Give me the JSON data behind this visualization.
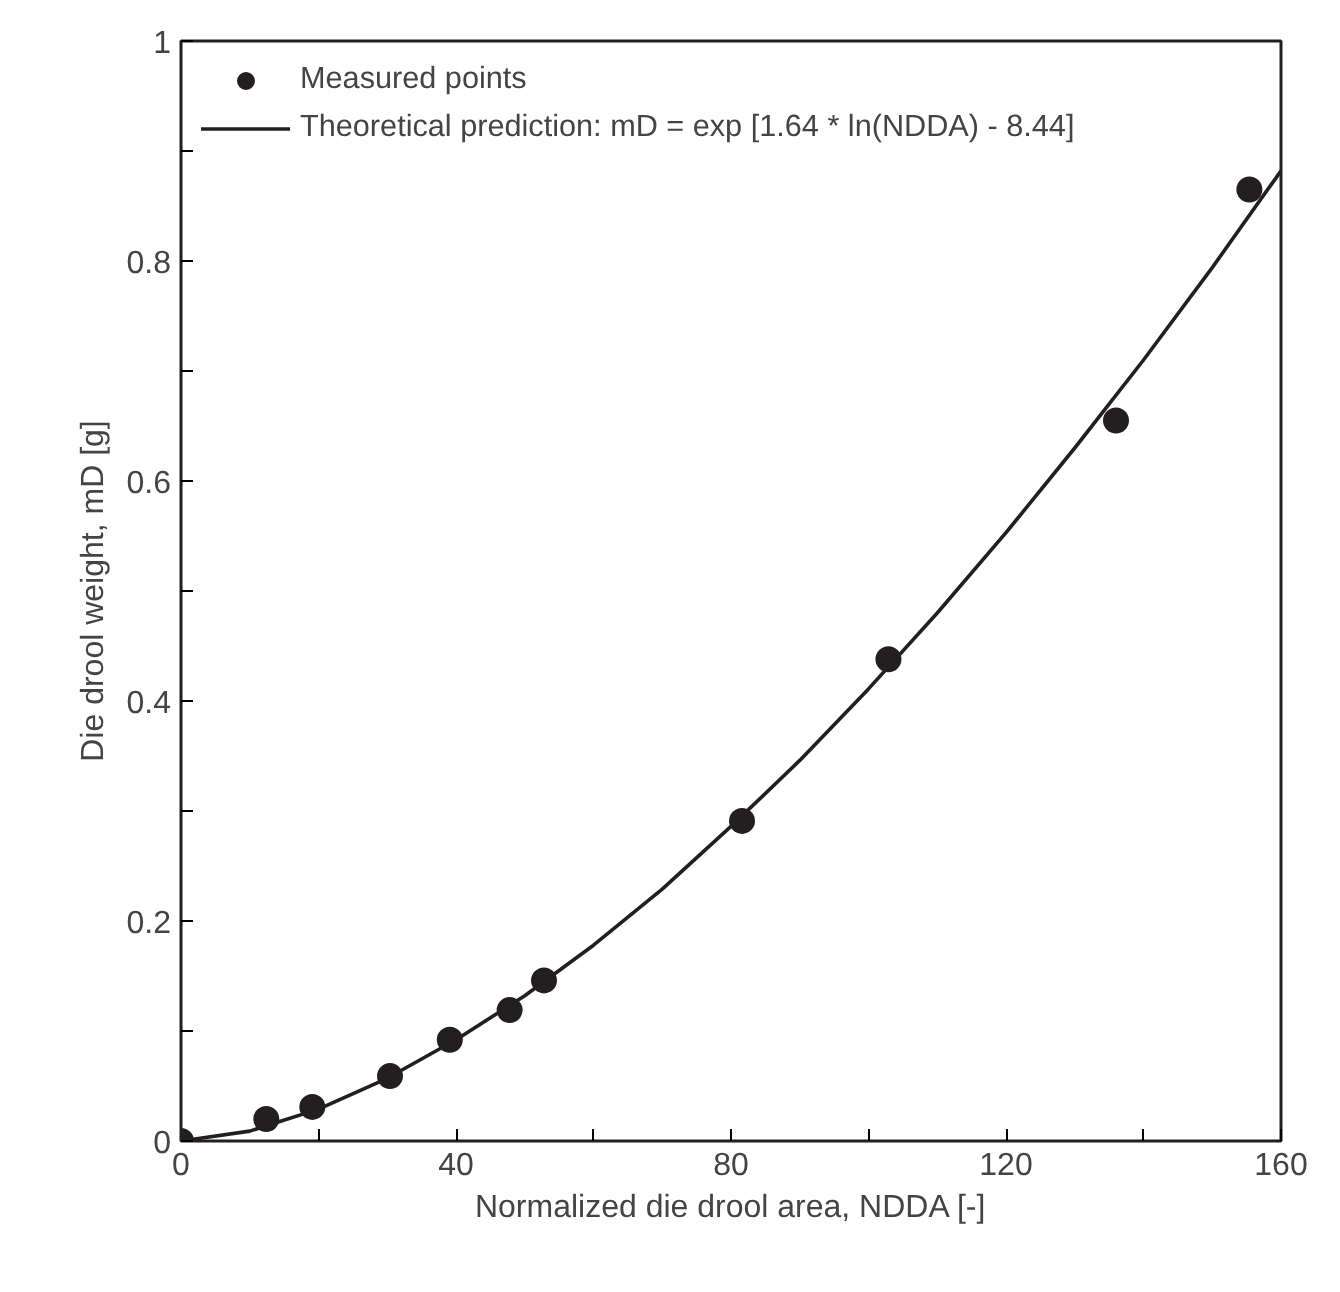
{
  "chart_data": {
    "type": "scatter",
    "xlabel": "Normalized die drool area, NDDA [-]",
    "ylabel": "Die drool weight, mD [g]",
    "xlim": [
      0,
      160
    ],
    "ylim": [
      0,
      1
    ],
    "xticks": [
      0,
      {
        "value": 20,
        "label": null
      },
      40,
      {
        "value": 60,
        "label": null
      },
      80,
      {
        "value": 100,
        "label": null
      },
      120,
      {
        "value": 140,
        "label": null
      },
      160
    ],
    "yticks": [
      0,
      {
        "value": 0.1,
        "label": null
      },
      0.2,
      {
        "value": 0.3,
        "label": null
      },
      0.4,
      {
        "value": 0.5,
        "label": null
      },
      0.6,
      {
        "value": 0.7,
        "label": null
      },
      0.8,
      {
        "value": 0.9,
        "label": null
      },
      1
    ],
    "grid": false,
    "legend": "top left",
    "series": [
      {
        "name": "Measured points",
        "marker": "circle",
        "color": "#231f20",
        "x": [
          0,
          12.4,
          19.1,
          30.4,
          39.1,
          47.8,
          52.8,
          81.6,
          102.9,
          136,
          155.4
        ],
        "values": [
          0,
          0.02,
          0.031,
          0.059,
          0.092,
          0.119,
          0.146,
          0.291,
          0.438,
          0.655,
          0.865
        ]
      },
      {
        "name": "Theoretical prediction: mD = exp [1.64 * ln(NDDA) - 8.44]",
        "type": "line",
        "marker": "none",
        "line_style": "solid",
        "color": "#231f20",
        "x": [
          0,
          10,
          20,
          30,
          40,
          50,
          60,
          70,
          80,
          90,
          100,
          110,
          120,
          130,
          140,
          150,
          160
        ],
        "values": [
          0,
          0.009,
          0.029,
          0.057,
          0.092,
          0.132,
          0.178,
          0.229,
          0.286,
          0.346,
          0.411,
          0.48,
          0.553,
          0.63,
          0.71,
          0.794,
          0.882
        ]
      }
    ]
  }
}
